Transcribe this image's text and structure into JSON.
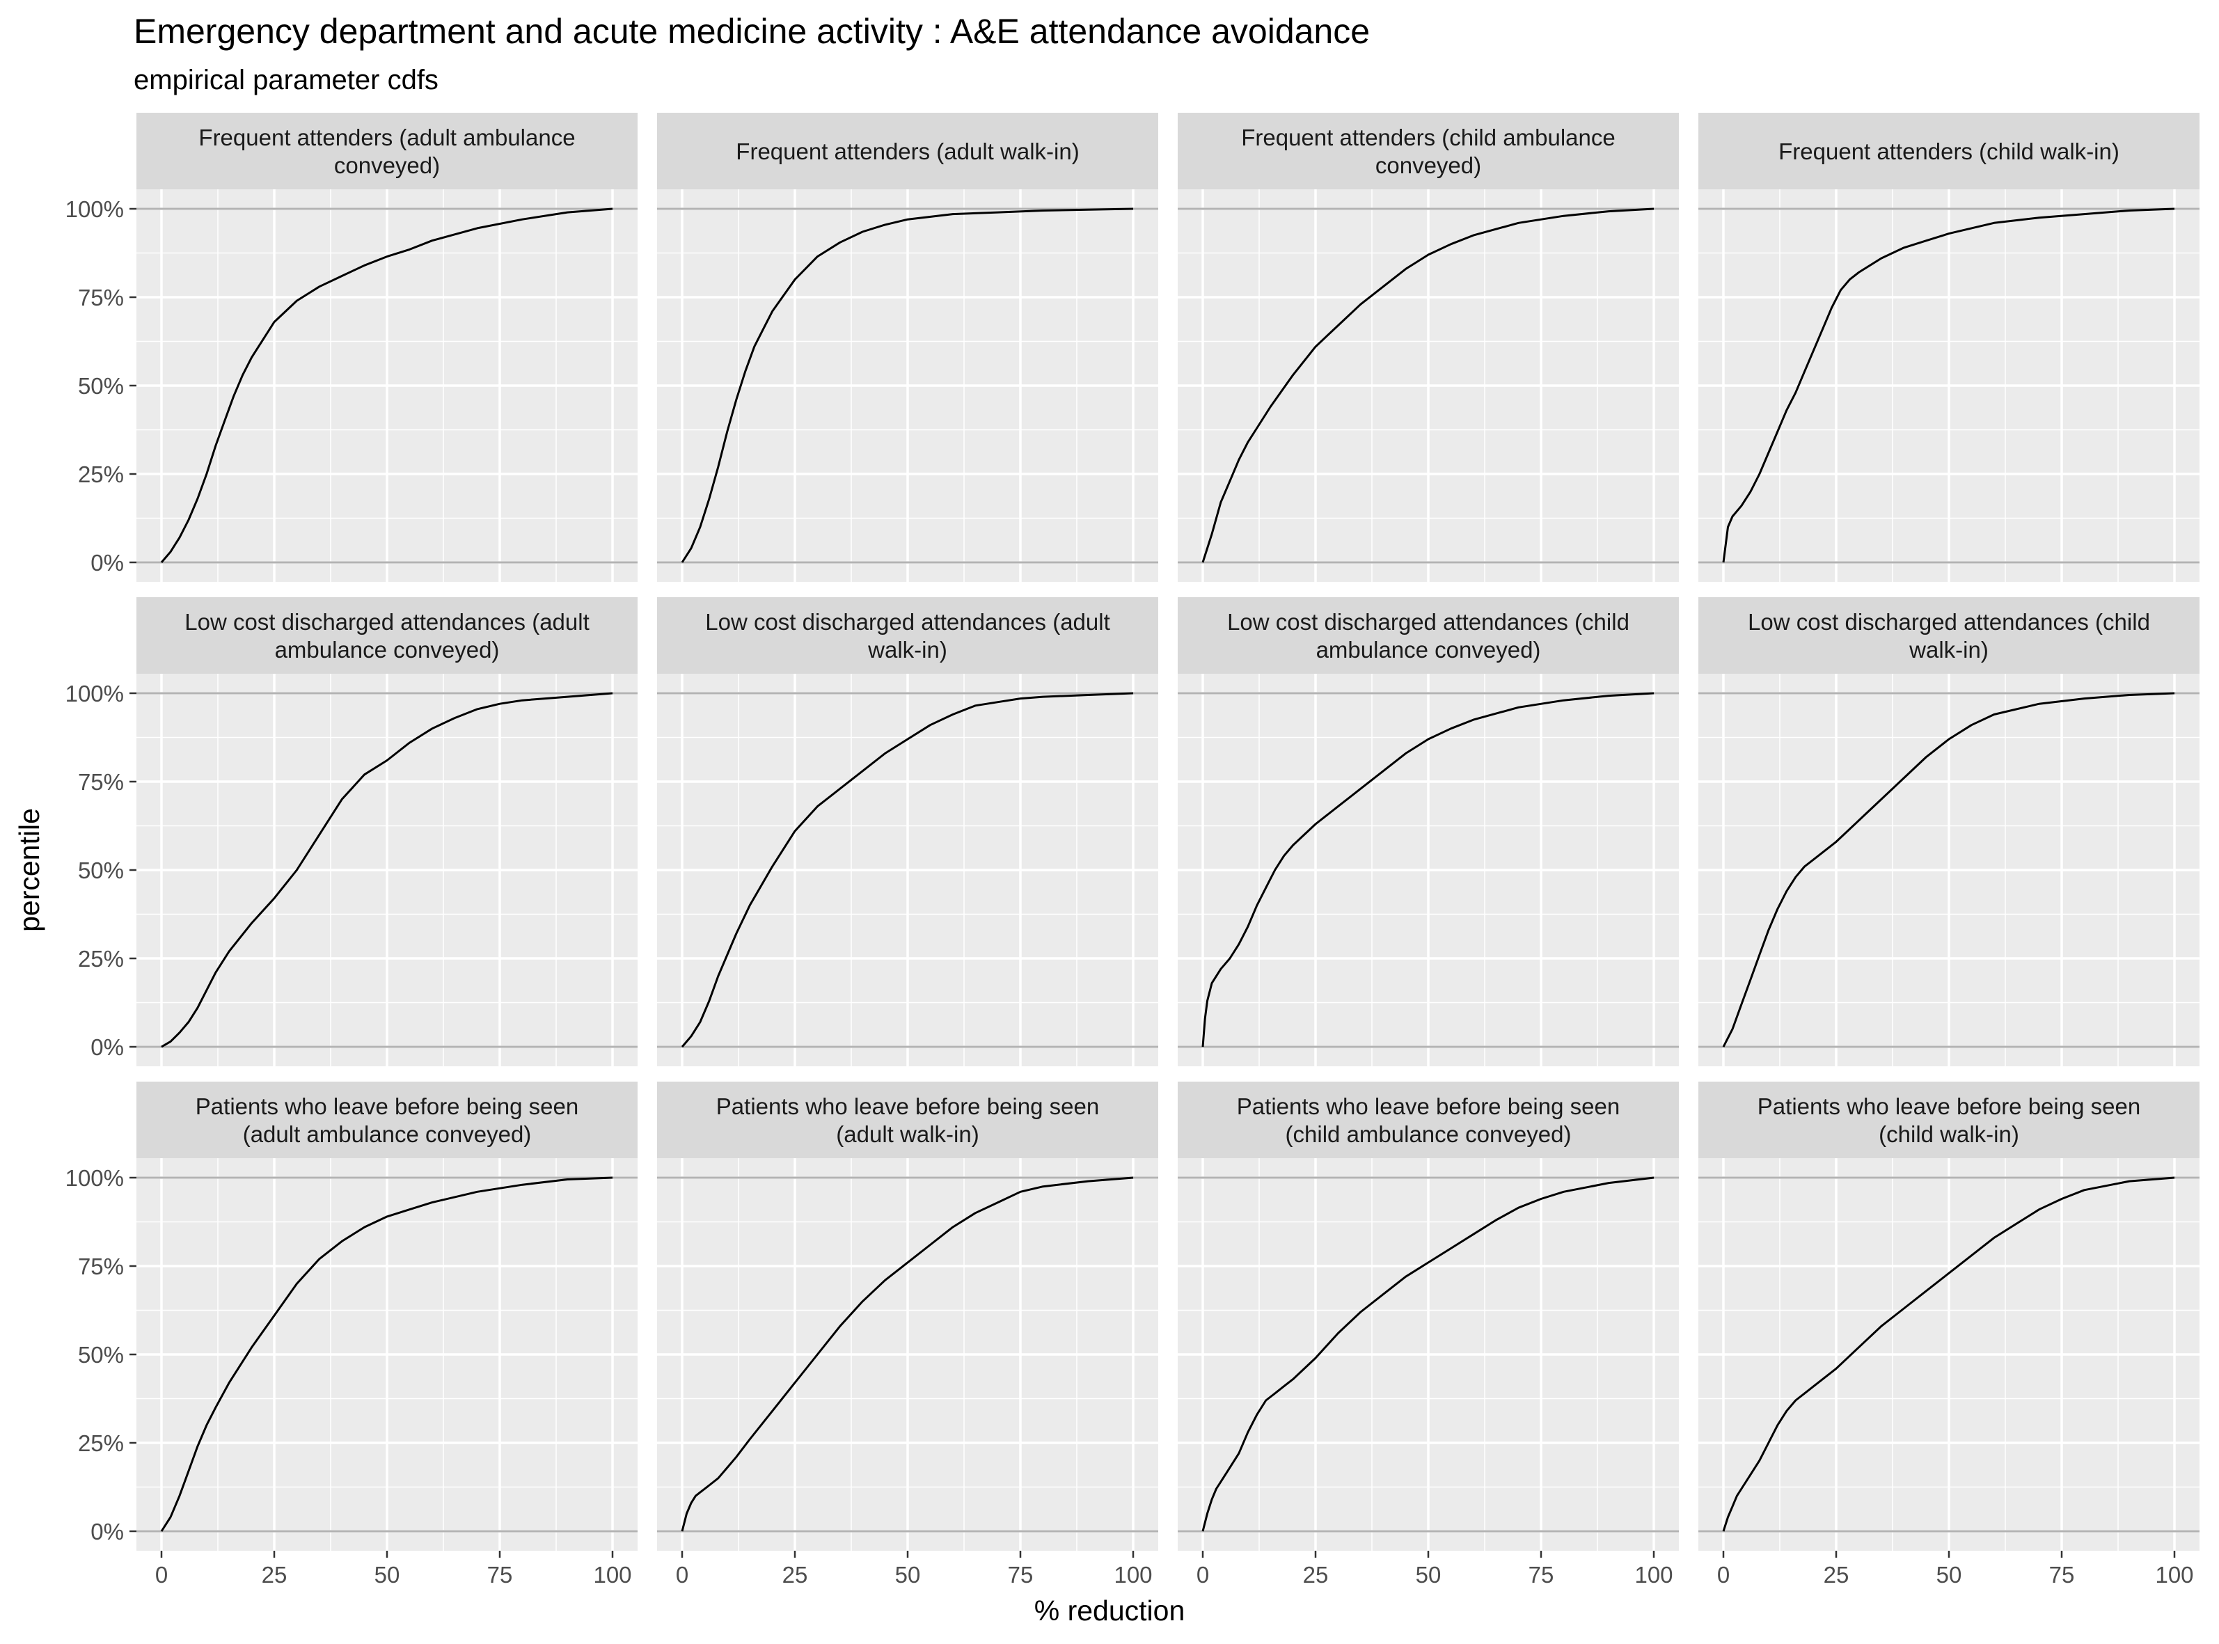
{
  "title": "Emergency department and acute medicine activity : A&E attendance avoidance",
  "subtitle": "empirical parameter cdfs",
  "colors": {
    "panel_background": "#ebebeb",
    "strip_background": "#d9d9d9",
    "grid_line": "#ffffff",
    "line": "#000000",
    "reference_line": "#b3b3b3"
  },
  "chart_data": {
    "type": "line",
    "facet": "wrap",
    "ncol": 4,
    "nrow": 3,
    "xlabel": "% reduction",
    "ylabel": "percentile",
    "xlim": [
      0,
      100
    ],
    "ylim": [
      0,
      1
    ],
    "x_ticks": [
      0,
      25,
      50,
      75,
      100
    ],
    "x_tick_labels": [
      "0",
      "25",
      "50",
      "75",
      "100"
    ],
    "y_ticks": [
      0,
      0.25,
      0.5,
      0.75,
      1
    ],
    "y_tick_labels": [
      "0%",
      "25%",
      "50%",
      "75%",
      "100%"
    ],
    "reference_lines_y": [
      0,
      1
    ],
    "grid": true,
    "panels": [
      {
        "title": [
          "Frequent attenders (adult ambulance",
          "conveyed)"
        ],
        "x": [
          0,
          2,
          4,
          6,
          8,
          10,
          12,
          14,
          16,
          18,
          20,
          25,
          30,
          35,
          40,
          45,
          50,
          55,
          60,
          70,
          80,
          90,
          100
        ],
        "y": [
          0,
          0.03,
          0.07,
          0.12,
          0.18,
          0.25,
          0.33,
          0.4,
          0.47,
          0.53,
          0.58,
          0.68,
          0.74,
          0.78,
          0.81,
          0.84,
          0.865,
          0.885,
          0.91,
          0.945,
          0.97,
          0.99,
          1.0
        ]
      },
      {
        "title": [
          "Frequent attenders (adult walk-in)"
        ],
        "x": [
          0,
          2,
          4,
          6,
          8,
          10,
          12,
          14,
          16,
          18,
          20,
          25,
          30,
          35,
          40,
          45,
          50,
          60,
          70,
          80,
          100
        ],
        "y": [
          0,
          0.04,
          0.1,
          0.18,
          0.27,
          0.37,
          0.46,
          0.54,
          0.61,
          0.66,
          0.71,
          0.8,
          0.865,
          0.905,
          0.935,
          0.955,
          0.97,
          0.985,
          0.99,
          0.995,
          1.0
        ]
      },
      {
        "title": [
          "Frequent attenders (child ambulance",
          "conveyed)"
        ],
        "x": [
          0,
          2,
          4,
          6,
          8,
          10,
          12,
          15,
          20,
          25,
          30,
          35,
          40,
          45,
          50,
          55,
          60,
          70,
          80,
          90,
          100
        ],
        "y": [
          0,
          0.08,
          0.17,
          0.23,
          0.29,
          0.34,
          0.38,
          0.44,
          0.53,
          0.61,
          0.67,
          0.73,
          0.78,
          0.83,
          0.87,
          0.9,
          0.925,
          0.96,
          0.98,
          0.993,
          1.0
        ]
      },
      {
        "title": [
          "Frequent attenders (child walk-in)"
        ],
        "x": [
          0,
          1,
          2,
          4,
          6,
          8,
          10,
          12,
          14,
          16,
          18,
          20,
          22,
          24,
          26,
          28,
          30,
          35,
          40,
          45,
          50,
          55,
          60,
          70,
          80,
          90,
          100
        ],
        "y": [
          0,
          0.1,
          0.13,
          0.16,
          0.2,
          0.25,
          0.31,
          0.37,
          0.43,
          0.48,
          0.54,
          0.6,
          0.66,
          0.72,
          0.77,
          0.8,
          0.82,
          0.86,
          0.89,
          0.91,
          0.93,
          0.945,
          0.96,
          0.975,
          0.985,
          0.995,
          1.0
        ]
      },
      {
        "title": [
          "Low cost discharged attendances (adult",
          "ambulance conveyed)"
        ],
        "x": [
          0,
          2,
          4,
          6,
          8,
          10,
          12,
          15,
          20,
          25,
          30,
          35,
          40,
          45,
          50,
          55,
          60,
          65,
          70,
          75,
          80,
          90,
          100
        ],
        "y": [
          0,
          0.015,
          0.04,
          0.07,
          0.11,
          0.16,
          0.21,
          0.27,
          0.35,
          0.42,
          0.5,
          0.6,
          0.7,
          0.77,
          0.81,
          0.86,
          0.9,
          0.93,
          0.955,
          0.97,
          0.98,
          0.99,
          1.0
        ]
      },
      {
        "title": [
          "Low cost discharged attendances (adult",
          "walk-in)"
        ],
        "x": [
          0,
          2,
          4,
          6,
          8,
          10,
          12,
          15,
          20,
          25,
          30,
          35,
          40,
          45,
          50,
          55,
          60,
          65,
          70,
          75,
          80,
          90,
          100
        ],
        "y": [
          0,
          0.03,
          0.07,
          0.13,
          0.2,
          0.26,
          0.32,
          0.4,
          0.51,
          0.61,
          0.68,
          0.73,
          0.78,
          0.83,
          0.87,
          0.91,
          0.94,
          0.965,
          0.975,
          0.985,
          0.99,
          0.995,
          1.0
        ]
      },
      {
        "title": [
          "Low cost discharged attendances (child",
          "ambulance conveyed)"
        ],
        "x": [
          0,
          0.5,
          1,
          2,
          3,
          4,
          6,
          8,
          10,
          12,
          14,
          16,
          18,
          20,
          25,
          30,
          35,
          40,
          45,
          50,
          55,
          60,
          70,
          80,
          90,
          100
        ],
        "y": [
          0,
          0.08,
          0.13,
          0.18,
          0.2,
          0.22,
          0.25,
          0.29,
          0.34,
          0.4,
          0.45,
          0.5,
          0.54,
          0.57,
          0.63,
          0.68,
          0.73,
          0.78,
          0.83,
          0.87,
          0.9,
          0.925,
          0.96,
          0.98,
          0.993,
          1.0
        ]
      },
      {
        "title": [
          "Low cost discharged attendances (child",
          "walk-in)"
        ],
        "x": [
          0,
          2,
          4,
          6,
          8,
          10,
          12,
          14,
          16,
          18,
          20,
          25,
          30,
          35,
          40,
          45,
          50,
          55,
          60,
          70,
          80,
          90,
          100
        ],
        "y": [
          0,
          0.05,
          0.12,
          0.19,
          0.26,
          0.33,
          0.39,
          0.44,
          0.48,
          0.51,
          0.53,
          0.58,
          0.64,
          0.7,
          0.76,
          0.82,
          0.87,
          0.91,
          0.94,
          0.97,
          0.985,
          0.995,
          1.0
        ]
      },
      {
        "title": [
          "Patients who leave before being seen",
          "(adult ambulance conveyed)"
        ],
        "x": [
          0,
          2,
          4,
          6,
          8,
          10,
          12,
          15,
          20,
          25,
          30,
          35,
          40,
          45,
          50,
          55,
          60,
          70,
          80,
          90,
          100
        ],
        "y": [
          0,
          0.04,
          0.1,
          0.17,
          0.24,
          0.3,
          0.35,
          0.42,
          0.52,
          0.61,
          0.7,
          0.77,
          0.82,
          0.86,
          0.89,
          0.91,
          0.93,
          0.96,
          0.98,
          0.995,
          1.0
        ]
      },
      {
        "title": [
          "Patients who leave before being seen",
          "(adult walk-in)"
        ],
        "x": [
          0,
          1,
          2,
          3,
          4,
          6,
          8,
          10,
          12,
          15,
          20,
          25,
          30,
          35,
          40,
          45,
          50,
          55,
          60,
          65,
          70,
          75,
          80,
          90,
          100
        ],
        "y": [
          0,
          0.05,
          0.08,
          0.1,
          0.11,
          0.13,
          0.15,
          0.18,
          0.21,
          0.26,
          0.34,
          0.42,
          0.5,
          0.58,
          0.65,
          0.71,
          0.76,
          0.81,
          0.86,
          0.9,
          0.93,
          0.96,
          0.975,
          0.99,
          1.0
        ]
      },
      {
        "title": [
          "Patients who leave before being seen",
          "(child ambulance conveyed)"
        ],
        "x": [
          0,
          1,
          2,
          3,
          4,
          6,
          8,
          10,
          12,
          14,
          16,
          18,
          20,
          25,
          30,
          35,
          40,
          45,
          50,
          55,
          60,
          65,
          70,
          75,
          80,
          90,
          100
        ],
        "y": [
          0,
          0.05,
          0.09,
          0.12,
          0.14,
          0.18,
          0.22,
          0.28,
          0.33,
          0.37,
          0.39,
          0.41,
          0.43,
          0.49,
          0.56,
          0.62,
          0.67,
          0.72,
          0.76,
          0.8,
          0.84,
          0.88,
          0.915,
          0.94,
          0.96,
          0.985,
          1.0
        ]
      },
      {
        "title": [
          "Patients who leave before being seen",
          "(child walk-in)"
        ],
        "x": [
          0,
          1,
          2,
          3,
          4,
          6,
          8,
          10,
          12,
          14,
          16,
          18,
          20,
          25,
          30,
          35,
          40,
          45,
          50,
          55,
          60,
          65,
          70,
          75,
          80,
          90,
          100
        ],
        "y": [
          0,
          0.04,
          0.07,
          0.1,
          0.12,
          0.16,
          0.2,
          0.25,
          0.3,
          0.34,
          0.37,
          0.39,
          0.41,
          0.46,
          0.52,
          0.58,
          0.63,
          0.68,
          0.73,
          0.78,
          0.83,
          0.87,
          0.91,
          0.94,
          0.965,
          0.99,
          1.0
        ]
      }
    ]
  }
}
